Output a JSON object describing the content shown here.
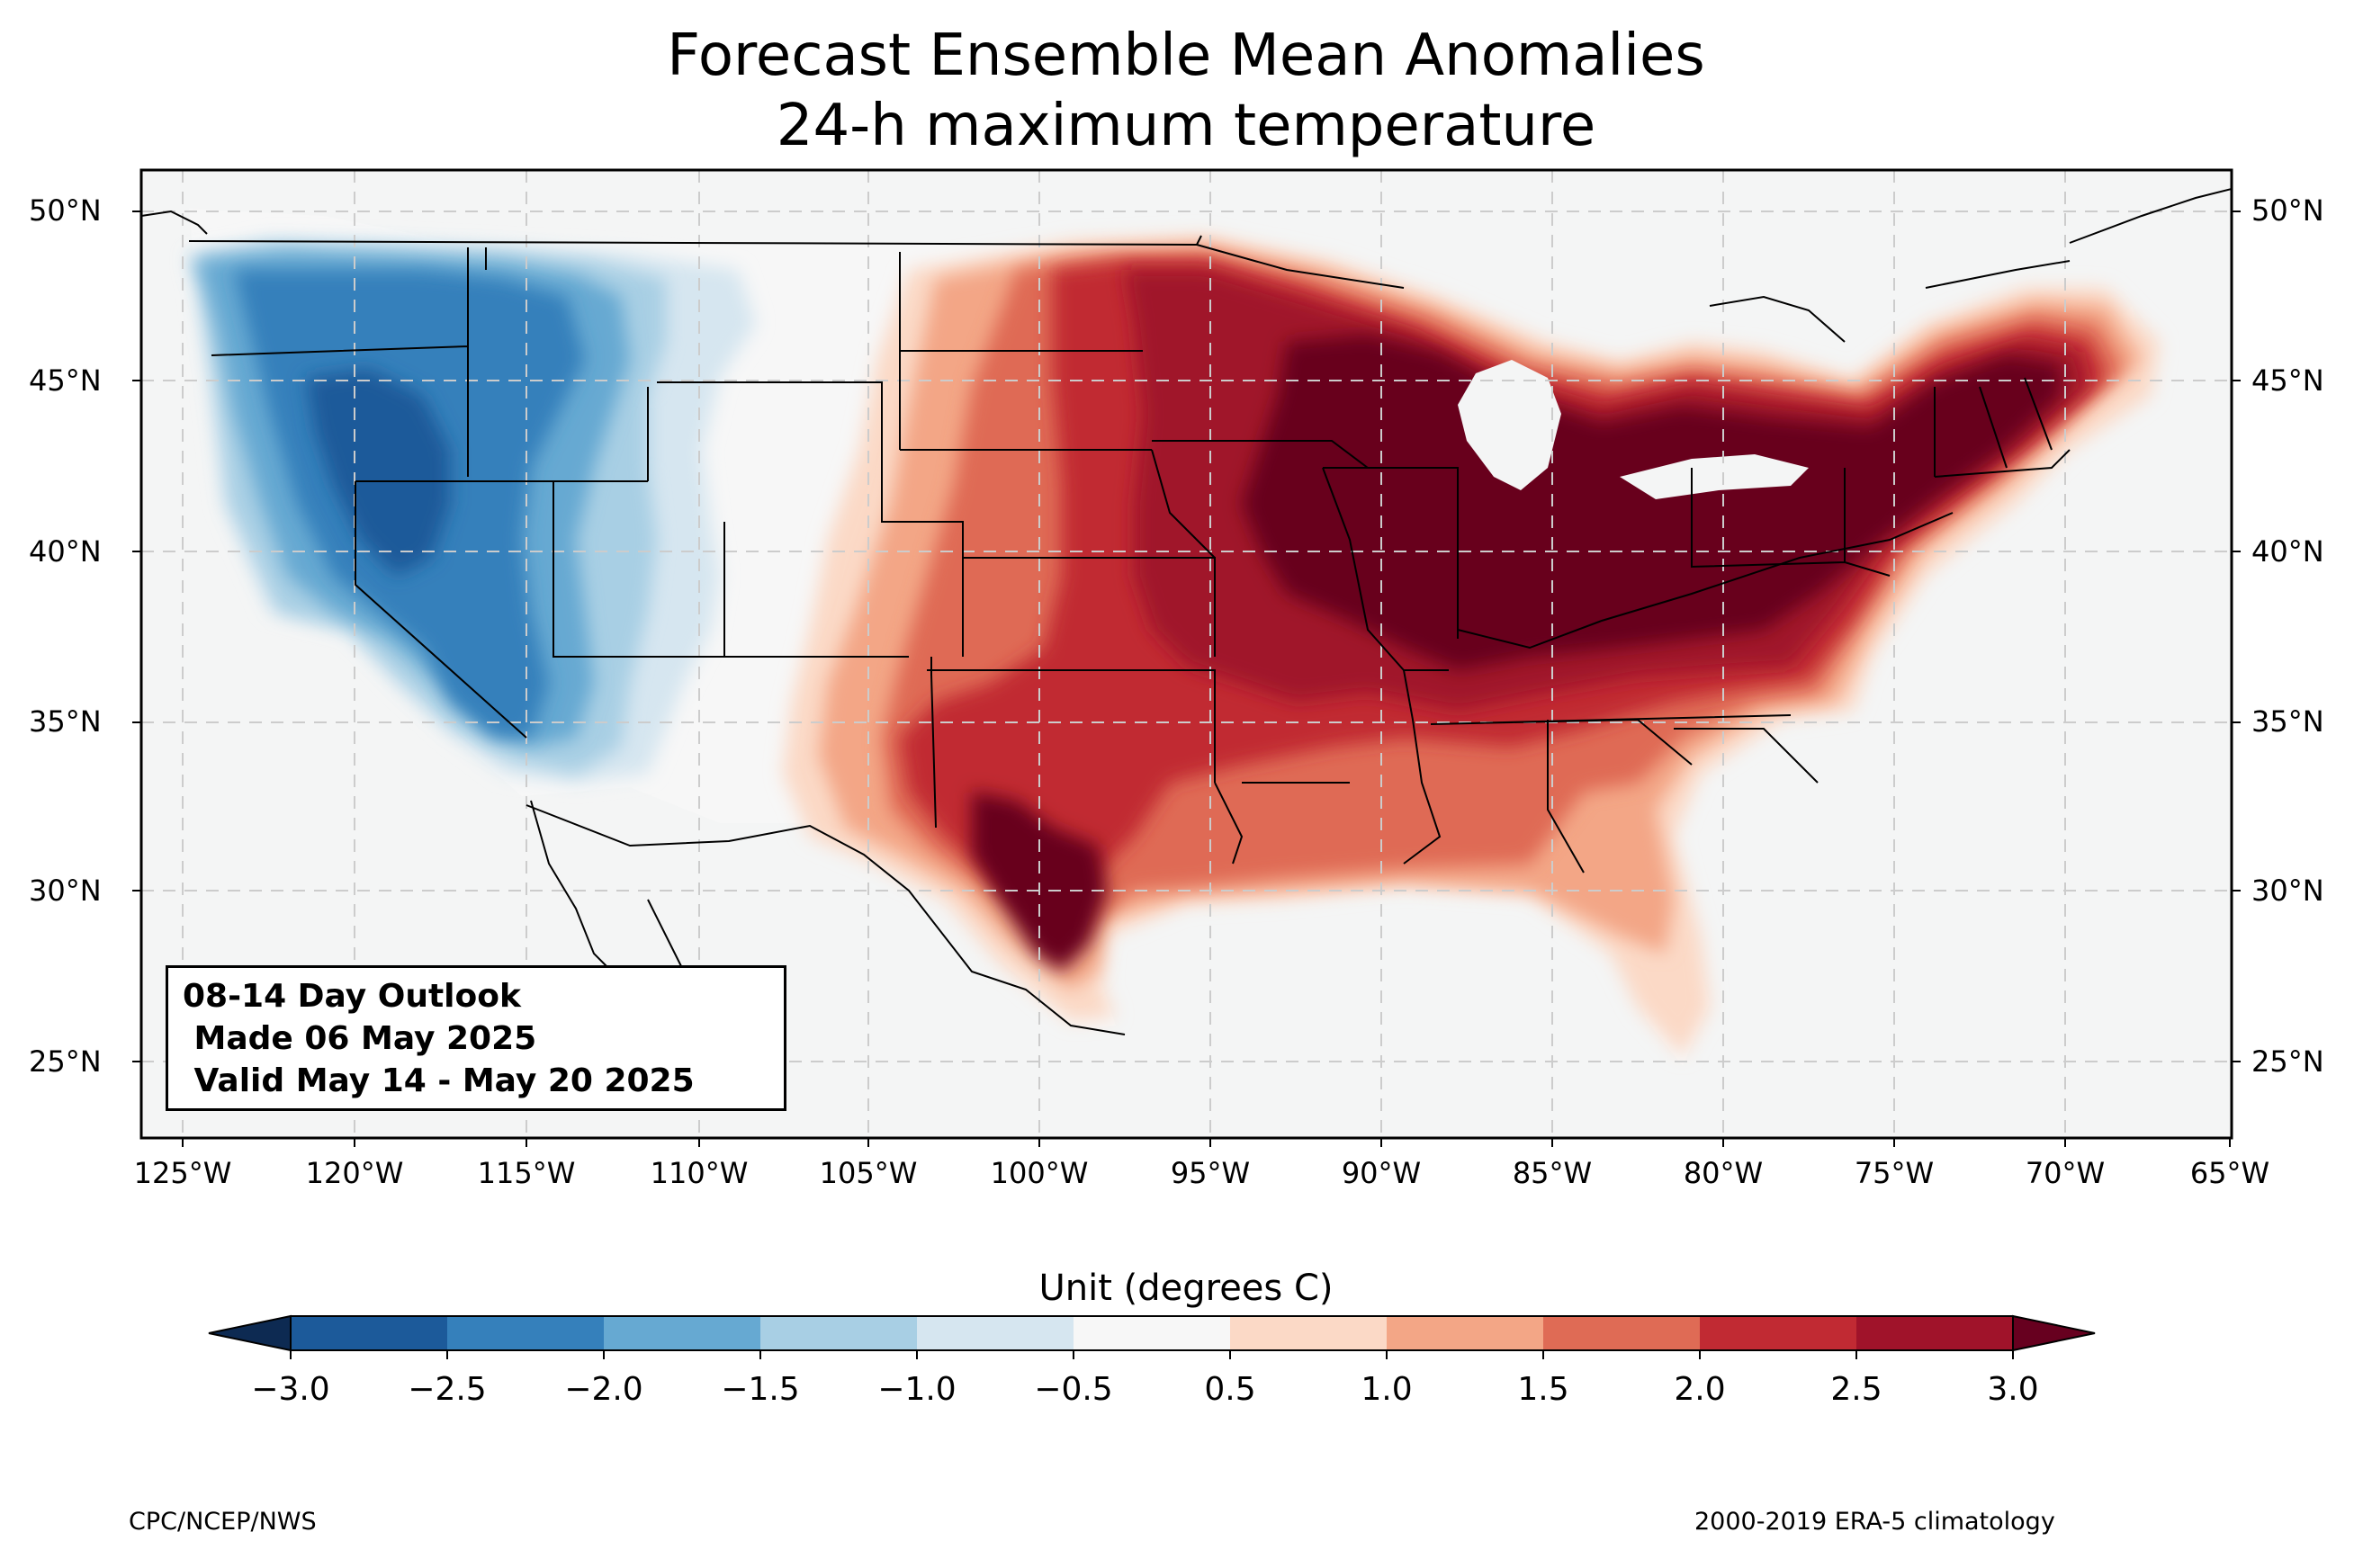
{
  "title": {
    "line1": "Forecast Ensemble Mean Anomalies",
    "line2": "24-h maximum temperature"
  },
  "map": {
    "projection": "PlateCarree",
    "extent": {
      "lon_min": -126.3,
      "lon_max": -64.7,
      "lat_min": 22.8,
      "lat_max": 51.3
    },
    "lat_labels": [
      "50°N",
      "45°N",
      "40°N",
      "35°N",
      "30°N",
      "25°N"
    ],
    "lon_labels": [
      "125°W",
      "120°W",
      "115°W",
      "110°W",
      "105°W",
      "100°W",
      "95°W",
      "90°W",
      "85°W",
      "80°W",
      "75°W",
      "70°W",
      "65°W"
    ],
    "ocean_color": "#f4f5f5",
    "gridlines": "dashed"
  },
  "outlook": {
    "line1": "08-14 Day Outlook",
    "line2": " Made 06 May 2025",
    "line3": " Valid May 14 - May 20 2025"
  },
  "colorbar": {
    "title": "Unit (degrees C)",
    "ticks": [
      "−3.0",
      "−2.5",
      "−2.0",
      "−1.5",
      "−1.0",
      "−0.5",
      "0.5",
      "1.0",
      "1.5",
      "2.0",
      "2.5",
      "3.0"
    ],
    "under_color": "#0d2a52",
    "over_color": "#67001f",
    "colors": [
      "#1c5a9a",
      "#3580bb",
      "#66a9d2",
      "#a8cfe4",
      "#d6e6f0",
      "#f7f7f7",
      "#fbd9c6",
      "#f3a686",
      "#df6b55",
      "#c12a33",
      "#a0132a"
    ]
  },
  "footer": {
    "left": "CPC/NCEP/NWS",
    "right": "2000-2019 ERA-5 climatology"
  }
}
